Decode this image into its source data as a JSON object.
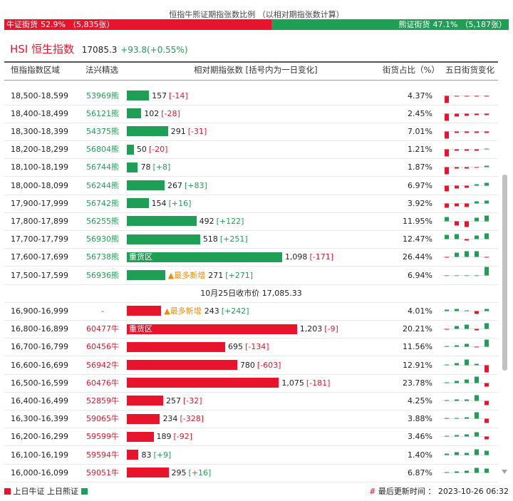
{
  "ratio": {
    "title": "恒指牛熊证期指张数比例 （以相对期指张数计算）",
    "bull": {
      "label": "牛证街货",
      "percent": {
        "value": 52.9,
        "label": "52.9%"
      },
      "count": "（5,835张）",
      "color": "#e8142c"
    },
    "bear": {
      "label": "熊证街货",
      "percent": {
        "value": 47.1,
        "label": "47.1%"
      },
      "count": "（5,187张）",
      "color": "#1f9e55"
    }
  },
  "index": {
    "name": "HSI 恒生指数",
    "value": "17085.3",
    "change": "+93.8(+0.55%)",
    "name_color": "#e8142c",
    "change_color": "#1f9e55"
  },
  "table": {
    "headers": [
      "恒指指数区域",
      "法兴精选",
      "相对期指张数 [括号内为一日变化]",
      "街货占比（%）",
      "五日街货变化"
    ],
    "spark_ylim": [
      -12,
      12
    ],
    "spark_up_color": "#1f9e55",
    "spark_down_color": "#e8142c",
    "tag_color": "#f08c00",
    "bear": {
      "color": "#1f9e55",
      "rows": [
        {
          "range": "18,500-18,599",
          "code": "53969熊",
          "contracts": {
            "value": 157,
            "label": "157"
          },
          "change": "[-14]",
          "share": "4.37%",
          "spark": [
            -10,
            -1,
            -1,
            -1,
            -1
          ]
        },
        {
          "range": "18,400-18,499",
          "code": "56121熊",
          "contracts": {
            "value": 102,
            "label": "102"
          },
          "change": "[-28]",
          "share": "2.45%",
          "spark": [
            -10,
            -4,
            -3,
            -2,
            -2
          ]
        },
        {
          "range": "18,300-18,399",
          "code": "54375熊",
          "contracts": {
            "value": 291,
            "label": "291"
          },
          "change": "[-31]",
          "share": "7.01%",
          "spark": [
            -10,
            -2,
            -2,
            -2,
            -2
          ]
        },
        {
          "range": "18,200-18,299",
          "code": "56804熊",
          "contracts": {
            "value": 50,
            "label": "50"
          },
          "change": "[-20]",
          "share": "1.21%",
          "spark": [
            -10,
            -2,
            -2,
            -2,
            1
          ]
        },
        {
          "range": "18,100-18,199",
          "code": "56744熊",
          "contracts": {
            "value": 78,
            "label": "78"
          },
          "change": "[+8]",
          "share": "1.87%",
          "spark": [
            -10,
            -2,
            -2,
            -1,
            2
          ]
        },
        {
          "range": "18,000-18,099",
          "code": "56244熊",
          "contracts": {
            "value": 267,
            "label": "267"
          },
          "change": "[+83]",
          "share": "6.97%",
          "spark": [
            -8,
            -4,
            -3,
            2,
            4
          ]
        },
        {
          "range": "17,900-17,999",
          "code": "56742熊",
          "contracts": {
            "value": 154,
            "label": "154"
          },
          "change": "[+16]",
          "share": "3.92%",
          "spark": [
            -6,
            -4,
            -5,
            3,
            4
          ]
        },
        {
          "range": "17,800-17,899",
          "code": "56255熊",
          "contracts": {
            "value": 492,
            "label": "492"
          },
          "change": "[+122]",
          "share": "11.95%",
          "spark": [
            6,
            -6,
            -8,
            5,
            8
          ]
        },
        {
          "range": "17,700-17,799",
          "code": "56930熊",
          "contracts": {
            "value": 518,
            "label": "518"
          },
          "change": "[+251]",
          "share": "12.47%",
          "spark": [
            6,
            7,
            -2,
            5,
            8
          ]
        },
        {
          "range": "17,600-17,699",
          "code": "56738熊",
          "contracts": {
            "value": 1098,
            "label": "1,098"
          },
          "change": "[-171]",
          "share": "26.44%",
          "spark": [
            -1,
            6,
            8,
            8,
            -1
          ],
          "inner_tag": "重货区"
        },
        {
          "range": "17,500-17,599",
          "code": "56936熊",
          "contracts": {
            "value": 271,
            "label": "271"
          },
          "change": "[+271]",
          "share": "6.94%",
          "spark": [
            0,
            0,
            0,
            0,
            12
          ],
          "tag": "▲最多新增"
        }
      ]
    },
    "separator": "10月25日收市价 17,085.33",
    "bull": {
      "color": "#e8142c",
      "rows": [
        {
          "range": "16,900-16,999",
          "code": "-",
          "contracts": {
            "value": 243,
            "label": "243"
          },
          "change": "[+242]",
          "share": "4.01%",
          "spark": [
            2,
            3,
            1,
            -4,
            3
          ],
          "tag": "▲最多新增"
        },
        {
          "range": "16,800-16,899",
          "code": "60477牛",
          "contracts": {
            "value": 1203,
            "label": "1,203"
          },
          "change": "[-9]",
          "share": "20.21%",
          "spark": [
            -1,
            4,
            6,
            -2,
            8
          ],
          "inner_tag": "重货区"
        },
        {
          "range": "16,700-16,799",
          "code": "60456牛",
          "contracts": {
            "value": 695,
            "label": "695"
          },
          "change": "[-134]",
          "share": "11.56%",
          "spark": [
            1,
            2,
            4,
            -1,
            10
          ]
        },
        {
          "range": "16,600-16,699",
          "code": "56942牛",
          "contracts": {
            "value": 780,
            "label": "780"
          },
          "change": "[-603]",
          "share": "12.91%",
          "spark": [
            1,
            3,
            8,
            2,
            -10
          ]
        },
        {
          "range": "16,500-16,599",
          "code": "60476牛",
          "contracts": {
            "value": 1075,
            "label": "1,075"
          },
          "change": "[-181]",
          "share": "23.78%",
          "spark": [
            1,
            3,
            5,
            9,
            -5
          ]
        },
        {
          "range": "16,400-16,499",
          "code": "52859牛",
          "contracts": {
            "value": 257,
            "label": "257"
          },
          "change": "[-32]",
          "share": "4.25%",
          "spark": [
            1,
            2,
            2,
            8,
            -6
          ]
        },
        {
          "range": "16,300-16,399",
          "code": "59065牛",
          "contracts": {
            "value": 234,
            "label": "234"
          },
          "change": "[-328]",
          "share": "3.88%",
          "spark": [
            1,
            1,
            2,
            9,
            -6
          ]
        },
        {
          "range": "16,200-16,299",
          "code": "59599牛",
          "contracts": {
            "value": 189,
            "label": "189"
          },
          "change": "[-92]",
          "share": "3.46%",
          "spark": [
            1,
            2,
            3,
            6,
            -4
          ]
        },
        {
          "range": "16,100-16,199",
          "code": "59594牛",
          "contracts": {
            "value": 83,
            "label": "83"
          },
          "change": "[+9]",
          "share": "1.40%",
          "spark": [
            2,
            4,
            3,
            8,
            6
          ]
        },
        {
          "range": "16,000-16,099",
          "code": "59051牛",
          "contracts": {
            "value": 295,
            "label": "295"
          },
          "change": "[+16]",
          "share": "6.87%",
          "spark": [
            1,
            2,
            3,
            7,
            6
          ]
        }
      ]
    }
  },
  "footer": {
    "legend": [
      {
        "label": "上日牛证",
        "color": "#e8142c"
      },
      {
        "label": "上日熊证",
        "color": "#1f9e55"
      }
    ],
    "marker": "#",
    "update_label": "最后更新时间 ：",
    "update_time": "2023-10-26 06:32"
  }
}
